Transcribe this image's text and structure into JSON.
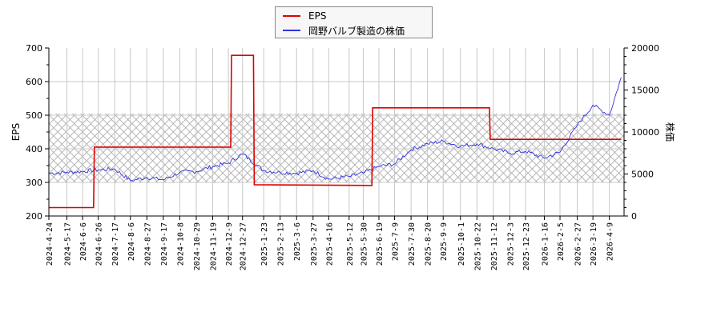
{
  "chart_data": {
    "type": "line",
    "title": "",
    "legend": {
      "position": "top-center",
      "entries": [
        {
          "name": "EPS",
          "color": "#dd0000"
        },
        {
          "name": "岡野バルブ製造の株価",
          "color": "#3333dd"
        }
      ]
    },
    "left_axis": {
      "label": "EPS",
      "ticks": [
        200,
        300,
        400,
        500,
        600,
        700
      ],
      "ylim": [
        200,
        700
      ]
    },
    "right_axis": {
      "label": "株価",
      "ticks": [
        0,
        5000,
        10000,
        15000,
        20000
      ],
      "ylim": [
        0,
        20000
      ]
    },
    "grid": true,
    "shaded_band": {
      "axis": "left",
      "from": 300,
      "to": 505,
      "style": "cross-hatch",
      "color": "#aaaaaa"
    },
    "x_tick_labels": [
      "2024-4-24",
      "2024-5-17",
      "2024-6-6",
      "2024-6-26",
      "2024-7-17",
      "2024-8-6",
      "2024-8-27",
      "2024-9-17",
      "2024-10-8",
      "2024-10-29",
      "2024-11-19",
      "2024-12-9",
      "2024-12-27",
      "2025-1-23",
      "2025-2-13",
      "2025-3-6",
      "2025-3-27",
      "2025-4-16",
      "2025-5-12",
      "2025-5-30",
      "2025-6-19",
      "2025-7-9",
      "2025-7-30",
      "2025-8-20",
      "2025-9-9",
      "2025-10-1",
      "2025-10-22",
      "2025-11-12",
      "2025-12-3",
      "2025-12-23",
      "2026-1-16",
      "2026-2-5",
      "2026-2-27",
      "2026-3-19",
      "2026-4-9"
    ],
    "series": [
      {
        "name": "EPS",
        "axis": "left",
        "color": "#dd0000",
        "step": true,
        "points": [
          {
            "x": "2024-4-24",
            "y": 225
          },
          {
            "x": "2024-6-20",
            "y": 225
          },
          {
            "x": "2024-6-21",
            "y": 405
          },
          {
            "x": "2024-12-12",
            "y": 405
          },
          {
            "x": "2024-12-13",
            "y": 678
          },
          {
            "x": "2025-1-10",
            "y": 678
          },
          {
            "x": "2025-1-11",
            "y": 293
          },
          {
            "x": "2025-6-10",
            "y": 291
          },
          {
            "x": "2025-6-11",
            "y": 522
          },
          {
            "x": "2025-11-7",
            "y": 522
          },
          {
            "x": "2025-11-8",
            "y": 428
          },
          {
            "x": "2026-4-24",
            "y": 428
          }
        ]
      },
      {
        "name": "岡野バルブ製造の株価",
        "axis": "right",
        "color": "#3333dd",
        "points": [
          {
            "x": "2024-4-24",
            "y": 5100
          },
          {
            "x": "2024-5-17",
            "y": 5200
          },
          {
            "x": "2024-6-6",
            "y": 5300
          },
          {
            "x": "2024-6-26",
            "y": 5500
          },
          {
            "x": "2024-7-17",
            "y": 5600
          },
          {
            "x": "2024-8-6",
            "y": 4200
          },
          {
            "x": "2024-8-27",
            "y": 4600
          },
          {
            "x": "2024-9-17",
            "y": 4300
          },
          {
            "x": "2024-10-8",
            "y": 5200
          },
          {
            "x": "2024-10-29",
            "y": 5300
          },
          {
            "x": "2024-11-19",
            "y": 5900
          },
          {
            "x": "2024-12-9",
            "y": 6300
          },
          {
            "x": "2024-12-27",
            "y": 7400
          },
          {
            "x": "2025-1-23",
            "y": 5400
          },
          {
            "x": "2025-2-13",
            "y": 5200
          },
          {
            "x": "2025-3-6",
            "y": 5100
          },
          {
            "x": "2025-3-27",
            "y": 5400
          },
          {
            "x": "2025-4-16",
            "y": 4400
          },
          {
            "x": "2025-5-12",
            "y": 4700
          },
          {
            "x": "2025-5-30",
            "y": 5100
          },
          {
            "x": "2025-6-19",
            "y": 5900
          },
          {
            "x": "2025-7-9",
            "y": 6200
          },
          {
            "x": "2025-7-30",
            "y": 7900
          },
          {
            "x": "2025-8-20",
            "y": 8600
          },
          {
            "x": "2025-9-9",
            "y": 8900
          },
          {
            "x": "2025-10-1",
            "y": 8300
          },
          {
            "x": "2025-10-22",
            "y": 8600
          },
          {
            "x": "2025-11-12",
            "y": 8000
          },
          {
            "x": "2025-12-3",
            "y": 7500
          },
          {
            "x": "2025-12-23",
            "y": 7700
          },
          {
            "x": "2026-1-16",
            "y": 6900
          },
          {
            "x": "2026-2-5",
            "y": 7600
          },
          {
            "x": "2026-2-27",
            "y": 10800
          },
          {
            "x": "2026-3-19",
            "y": 13200
          },
          {
            "x": "2026-4-9",
            "y": 12000
          },
          {
            "x": "2026-4-24",
            "y": 16500
          }
        ]
      }
    ]
  },
  "ui": {
    "legend_eps": "EPS",
    "legend_price": "岡野バルブ製造の株価",
    "left_axis_label": "EPS",
    "right_axis_label": "株価"
  }
}
